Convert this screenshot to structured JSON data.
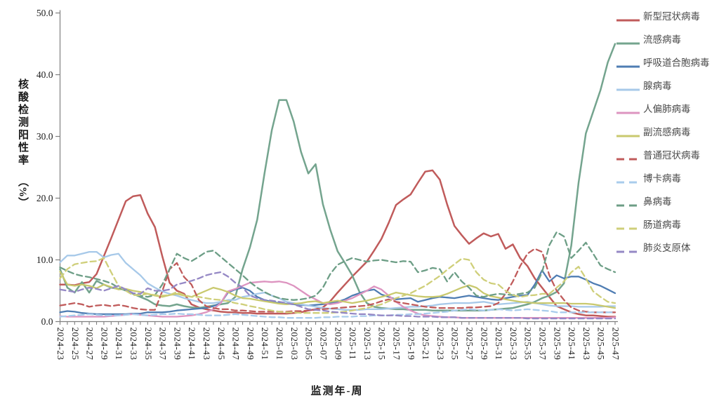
{
  "y_axis": {
    "title": "核酸检测阳性率",
    "unit": "（%）",
    "tick_labels": [
      "0.0",
      "10.0",
      "20.0",
      "30.0",
      "40.0",
      "50.0"
    ]
  },
  "x_axis": {
    "title": "监测年-周"
  },
  "chart_data": {
    "type": "line",
    "title": "",
    "xlabel": "监测年-周",
    "ylabel": "核酸检测阳性率（%）",
    "ylim": [
      0,
      50
    ],
    "y_ticks": [
      0,
      10,
      20,
      30,
      40,
      50
    ],
    "grid": false,
    "legend_position": "right",
    "x_label_every": 2,
    "x": [
      "2024-23",
      "2024-24",
      "2024-25",
      "2024-26",
      "2024-27",
      "2024-28",
      "2024-29",
      "2024-30",
      "2024-31",
      "2024-32",
      "2024-33",
      "2024-34",
      "2024-35",
      "2024-36",
      "2024-37",
      "2024-38",
      "2024-39",
      "2024-40",
      "2024-41",
      "2024-42",
      "2024-43",
      "2024-44",
      "2024-45",
      "2024-46",
      "2024-47",
      "2024-48",
      "2024-49",
      "2024-50",
      "2024-51",
      "2024-52",
      "2025-01",
      "2025-02",
      "2025-03",
      "2025-04",
      "2025-05",
      "2025-06",
      "2025-07",
      "2025-08",
      "2025-09",
      "2025-10",
      "2025-11",
      "2025-12",
      "2025-13",
      "2025-14",
      "2025-15",
      "2025-16",
      "2025-17",
      "2025-18",
      "2025-19",
      "2025-20",
      "2025-21",
      "2025-22",
      "2025-23",
      "2025-24",
      "2025-25",
      "2025-26",
      "2025-27",
      "2025-28",
      "2025-29",
      "2025-30",
      "2025-31",
      "2025-32",
      "2025-33",
      "2025-34",
      "2025-35",
      "2025-36",
      "2025-37",
      "2025-38",
      "2025-39",
      "2025-40",
      "2025-41",
      "2025-42",
      "2025-43",
      "2025-44",
      "2025-45",
      "2025-46",
      "2025-47"
    ],
    "series": [
      {
        "name": "新型冠状病毒",
        "color": "#C05B5B",
        "dash": false,
        "width": 2.5,
        "values": [
          6.0,
          6.0,
          5.9,
          6.2,
          6.4,
          7.7,
          10.6,
          13.5,
          16.5,
          19.5,
          20.3,
          20.5,
          17.5,
          15.3,
          10.6,
          6.3,
          5.0,
          4.5,
          2.8,
          2.3,
          2.0,
          1.8,
          1.6,
          1.5,
          1.5,
          1.4,
          1.4,
          1.3,
          1.3,
          1.3,
          1.3,
          1.3,
          1.4,
          1.5,
          1.8,
          2.0,
          2.3,
          3.3,
          4.7,
          6.0,
          7.3,
          8.5,
          9.7,
          11.5,
          13.4,
          16.0,
          18.9,
          19.8,
          20.6,
          22.5,
          24.3,
          24.5,
          23.0,
          19.0,
          15.5,
          14.0,
          12.6,
          13.5,
          14.3,
          13.8,
          14.2,
          11.8,
          12.5,
          10.3,
          9.0,
          7.0,
          5.5,
          4.0,
          2.5,
          2.0,
          1.5,
          1.2,
          1.0,
          1.0,
          0.9,
          0.8,
          0.8
        ]
      },
      {
        "name": "流感病毒",
        "color": "#74A48E",
        "dash": false,
        "width": 2.5,
        "values": [
          8.5,
          5.5,
          4.7,
          6.4,
          4.7,
          6.6,
          6.0,
          5.5,
          5.3,
          5.2,
          4.5,
          4.0,
          3.5,
          2.8,
          2.6,
          2.5,
          2.8,
          2.5,
          2.3,
          2.2,
          2.4,
          2.6,
          2.8,
          3.0,
          4.0,
          8.5,
          12.0,
          16.5,
          24.0,
          31.0,
          35.9,
          35.9,
          32.4,
          27.5,
          24.0,
          25.5,
          19.0,
          14.9,
          11.4,
          9.5,
          7.5,
          4.8,
          3.0,
          2.4,
          2.2,
          2.1,
          2.0,
          2.0,
          1.9,
          1.9,
          1.9,
          1.8,
          1.8,
          1.8,
          1.8,
          1.8,
          1.8,
          1.8,
          1.8,
          1.9,
          2.0,
          2.1,
          2.2,
          2.5,
          2.8,
          3.2,
          3.8,
          4.2,
          4.8,
          6.2,
          12.3,
          22.5,
          30.5,
          34.0,
          37.5,
          42.0,
          45.0
        ]
      },
      {
        "name": "呼吸道合胞病毒",
        "color": "#4F7DB3",
        "dash": false,
        "width": 2.3,
        "values": [
          1.5,
          1.7,
          1.6,
          1.4,
          1.3,
          1.2,
          1.2,
          1.2,
          1.2,
          1.2,
          1.3,
          1.3,
          1.5,
          1.5,
          1.5,
          1.6,
          1.8,
          1.9,
          2.0,
          2.1,
          2.2,
          2.5,
          3.0,
          4.7,
          5.2,
          5.5,
          5.0,
          4.0,
          3.5,
          3.2,
          3.0,
          2.9,
          2.8,
          2.7,
          2.6,
          2.7,
          2.8,
          3.0,
          3.2,
          3.6,
          4.2,
          4.6,
          5.0,
          5.2,
          4.4,
          4.0,
          3.6,
          3.7,
          3.8,
          3.2,
          3.5,
          3.8,
          4.0,
          3.9,
          3.8,
          4.0,
          4.2,
          4.0,
          3.8,
          3.6,
          3.5,
          3.8,
          4.0,
          4.2,
          4.3,
          6.0,
          8.3,
          6.5,
          7.5,
          7.0,
          7.3,
          7.3,
          6.8,
          6.2,
          5.8,
          5.2,
          4.6
        ]
      },
      {
        "name": "腺病毒",
        "color": "#A7C9E9",
        "dash": false,
        "width": 2.3,
        "values": [
          9.6,
          10.7,
          10.7,
          11.0,
          11.3,
          11.3,
          10.4,
          10.8,
          11.0,
          9.5,
          8.5,
          7.5,
          6.2,
          5.5,
          4.9,
          4.5,
          4.2,
          3.8,
          3.5,
          3.2,
          3.0,
          3.0,
          3.2,
          3.5,
          3.5,
          4.0,
          4.2,
          4.5,
          4.7,
          4.2,
          3.8,
          3.2,
          3.0,
          2.8,
          2.6,
          2.4,
          2.2,
          2.1,
          2.0,
          1.9,
          1.9,
          1.9,
          2.0,
          2.0,
          2.0,
          2.1,
          2.2,
          2.3,
          2.4,
          2.4,
          2.5,
          2.6,
          2.8,
          2.9,
          3.0,
          3.0,
          3.0,
          3.1,
          3.2,
          3.0,
          2.8,
          2.9,
          3.0,
          3.1,
          3.2,
          3.0,
          2.8,
          2.6,
          2.5,
          2.5,
          2.5,
          2.4,
          2.4,
          2.4,
          2.4,
          2.5,
          2.5
        ]
      },
      {
        "name": "人偏肺病毒",
        "color": "#DD94C0",
        "dash": false,
        "width": 2.3,
        "values": [
          0.9,
          0.8,
          0.8,
          0.8,
          0.8,
          0.8,
          0.8,
          0.9,
          1.0,
          1.1,
          1.2,
          1.1,
          1.0,
          0.9,
          0.8,
          0.8,
          0.8,
          0.9,
          1.0,
          1.2,
          1.5,
          2.0,
          3.0,
          4.9,
          5.3,
          5.8,
          6.3,
          6.4,
          6.5,
          6.4,
          6.5,
          6.3,
          5.8,
          5.0,
          4.2,
          3.6,
          3.0,
          2.8,
          3.0,
          3.4,
          3.8,
          4.4,
          5.0,
          5.7,
          5.2,
          4.2,
          3.2,
          2.4,
          1.8,
          1.3,
          1.0,
          0.9,
          0.8,
          0.7,
          0.7,
          0.6,
          0.6,
          0.6,
          0.6,
          0.6,
          0.6,
          0.6,
          0.6,
          0.6,
          0.6,
          0.6,
          0.6,
          0.6,
          0.6,
          0.6,
          0.6,
          0.6,
          0.6,
          0.6,
          0.6,
          0.6,
          0.7
        ]
      },
      {
        "name": "副流感病毒",
        "color": "#C9C96E",
        "dash": false,
        "width": 2.3,
        "values": [
          8.1,
          6.0,
          5.8,
          6.0,
          5.8,
          5.4,
          6.0,
          5.6,
          5.2,
          5.3,
          5.0,
          4.8,
          4.5,
          4.2,
          4.0,
          4.3,
          4.5,
          4.2,
          4.0,
          4.5,
          5.0,
          5.5,
          5.2,
          4.8,
          4.2,
          3.8,
          3.7,
          3.5,
          3.3,
          3.1,
          2.9,
          2.8,
          2.9,
          3.0,
          3.2,
          3.3,
          3.0,
          3.2,
          3.4,
          3.2,
          3.0,
          3.2,
          3.4,
          3.7,
          4.0,
          4.3,
          4.7,
          4.5,
          4.3,
          4.1,
          4.0,
          4.0,
          4.1,
          4.5,
          5.0,
          5.5,
          5.9,
          5.5,
          4.6,
          4.1,
          3.9,
          3.6,
          3.4,
          3.2,
          3.1,
          3.0,
          3.0,
          3.0,
          3.0,
          3.0,
          2.9,
          2.9,
          2.9,
          2.8,
          2.6,
          2.4,
          2.2
        ]
      },
      {
        "name": "普通冠状病毒",
        "color": "#C05B5B",
        "dash": true,
        "width": 2.3,
        "values": [
          2.6,
          2.8,
          3.0,
          2.8,
          2.4,
          2.6,
          2.7,
          2.5,
          2.7,
          2.5,
          2.2,
          2.0,
          1.9,
          1.9,
          4.9,
          8.5,
          9.5,
          7.2,
          6.0,
          3.5,
          2.5,
          2.2,
          2.0,
          2.0,
          1.8,
          1.8,
          1.7,
          1.6,
          1.6,
          1.6,
          1.6,
          1.6,
          1.7,
          1.7,
          1.8,
          1.9,
          2.0,
          2.1,
          2.2,
          2.3,
          2.4,
          2.5,
          2.6,
          2.9,
          3.3,
          3.6,
          3.2,
          3.0,
          2.8,
          2.6,
          2.4,
          2.3,
          2.2,
          2.2,
          2.2,
          2.2,
          2.3,
          2.3,
          2.4,
          2.5,
          3.0,
          4.5,
          6.5,
          9.0,
          11.0,
          11.8,
          11.3,
          7.5,
          5.0,
          3.5,
          2.3,
          1.8,
          1.6,
          1.5,
          1.5,
          1.5,
          1.5
        ]
      },
      {
        "name": "博卡病毒",
        "color": "#A9CCEC",
        "dash": true,
        "width": 2.3,
        "values": [
          0.8,
          0.9,
          1.0,
          1.1,
          1.2,
          1.1,
          1.0,
          1.0,
          1.0,
          1.1,
          1.2,
          1.1,
          1.0,
          1.1,
          1.2,
          1.2,
          1.3,
          1.2,
          1.2,
          1.1,
          1.0,
          1.0,
          1.0,
          1.1,
          1.2,
          1.1,
          1.0,
          0.9,
          0.8,
          0.7,
          0.7,
          0.6,
          0.6,
          0.6,
          0.6,
          0.6,
          0.7,
          0.7,
          0.8,
          0.8,
          0.8,
          0.9,
          0.9,
          1.0,
          1.0,
          1.0,
          1.1,
          1.1,
          1.2,
          1.2,
          1.3,
          1.4,
          1.5,
          1.6,
          1.8,
          1.9,
          2.0,
          1.9,
          1.8,
          1.9,
          2.0,
          1.9,
          1.8,
          1.9,
          2.0,
          1.9,
          1.8,
          1.7,
          1.5,
          1.5,
          1.5,
          1.5,
          1.5,
          1.5,
          1.5,
          1.5,
          1.5
        ]
      },
      {
        "name": "鼻病毒",
        "color": "#6D9E86",
        "dash": true,
        "width": 2.3,
        "values": [
          8.8,
          8.2,
          7.7,
          7.4,
          7.2,
          6.9,
          6.6,
          6.2,
          5.5,
          5.0,
          4.6,
          4.2,
          4.0,
          4.3,
          6.0,
          8.5,
          11.0,
          10.3,
          9.8,
          10.5,
          11.3,
          11.5,
          10.5,
          9.5,
          8.5,
          7.5,
          6.4,
          5.5,
          4.8,
          4.2,
          3.8,
          3.6,
          3.5,
          3.6,
          3.8,
          4.2,
          5.5,
          7.7,
          9.2,
          9.8,
          10.3,
          10.0,
          9.7,
          9.9,
          10.0,
          9.8,
          9.6,
          9.8,
          9.7,
          8.0,
          8.3,
          8.7,
          8.5,
          6.5,
          8.0,
          6.5,
          5.5,
          4.2,
          4.0,
          4.3,
          4.5,
          4.4,
          4.3,
          4.5,
          4.7,
          5.5,
          8.0,
          12.4,
          14.5,
          13.8,
          10.3,
          11.5,
          12.8,
          11.0,
          9.1,
          8.5,
          8.0
        ]
      },
      {
        "name": "肠道病毒",
        "color": "#CFCF7A",
        "dash": true,
        "width": 2.3,
        "values": [
          7.0,
          8.5,
          9.3,
          9.5,
          9.7,
          9.8,
          10.3,
          8.0,
          5.8,
          5.0,
          4.3,
          4.3,
          4.5,
          4.3,
          4.2,
          4.3,
          4.8,
          4.3,
          4.0,
          4.0,
          3.8,
          3.6,
          3.5,
          3.3,
          3.0,
          2.8,
          2.5,
          2.3,
          2.0,
          1.8,
          1.6,
          1.5,
          1.5,
          1.4,
          1.4,
          1.4,
          1.4,
          1.4,
          1.5,
          1.6,
          1.8,
          2.0,
          2.2,
          2.5,
          2.8,
          3.3,
          3.8,
          4.2,
          4.6,
          5.2,
          5.8,
          6.6,
          7.4,
          8.4,
          9.3,
          10.2,
          10.0,
          8.0,
          6.8,
          6.2,
          6.0,
          5.0,
          4.3,
          4.0,
          4.2,
          4.3,
          4.5,
          4.5,
          5.5,
          6.5,
          8.0,
          8.9,
          7.0,
          4.9,
          4.0,
          3.2,
          3.0
        ]
      },
      {
        "name": "肺炎支原体",
        "color": "#9588C5",
        "dash": true,
        "width": 2.3,
        "values": [
          5.2,
          5.0,
          4.8,
          5.2,
          5.5,
          5.3,
          5.0,
          5.4,
          5.8,
          5.2,
          4.6,
          4.5,
          5.4,
          5.0,
          5.0,
          5.2,
          6.0,
          6.3,
          6.6,
          7.0,
          7.5,
          7.8,
          8.0,
          7.3,
          6.3,
          5.5,
          4.2,
          3.8,
          3.5,
          3.4,
          3.2,
          3.0,
          2.8,
          2.4,
          2.0,
          1.9,
          1.8,
          1.6,
          1.5,
          1.4,
          1.3,
          1.2,
          1.2,
          1.1,
          1.0,
          1.0,
          1.0,
          0.9,
          0.9,
          0.8,
          0.8,
          0.8,
          0.7,
          0.7,
          0.7,
          0.6,
          0.6,
          0.6,
          0.6,
          0.6,
          0.6,
          0.6,
          0.6,
          0.6,
          0.5,
          0.5,
          0.5,
          0.5,
          0.5,
          0.5,
          0.5,
          0.5,
          0.5,
          0.5,
          0.5,
          0.5,
          0.5
        ]
      }
    ]
  }
}
